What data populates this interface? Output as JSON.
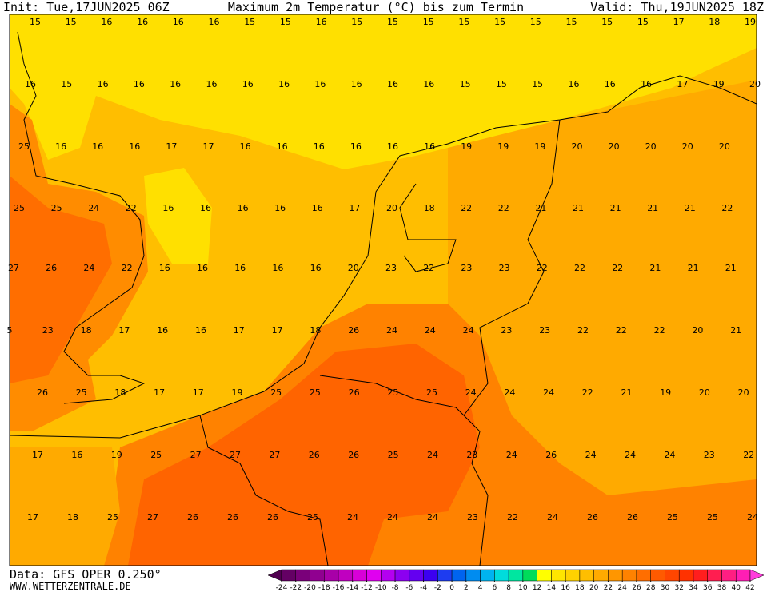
{
  "header": {
    "init": "Init: Tue,17JUN2025 06Z",
    "title": "Maximum 2m Temperatur (°C) bis zum Termin",
    "valid": "Valid: Thu,19JUN2025 18Z"
  },
  "grid": {
    "rows": [
      [
        15,
        15,
        16,
        16,
        16,
        16,
        15,
        15,
        16,
        15,
        15,
        15,
        15,
        15,
        15,
        15,
        15,
        15,
        17,
        18,
        19
      ],
      [
        16,
        15,
        16,
        16,
        16,
        16,
        16,
        16,
        16,
        16,
        16,
        16,
        15,
        15,
        15,
        16,
        16,
        16,
        17,
        19,
        20
      ],
      [
        25,
        16,
        16,
        16,
        17,
        17,
        16,
        16,
        16,
        16,
        16,
        16,
        19,
        19,
        19,
        20,
        20,
        20,
        20,
        20
      ],
      [
        25,
        25,
        24,
        22,
        16,
        16,
        16,
        16,
        16,
        17,
        20,
        18,
        22,
        22,
        21,
        21,
        21,
        21,
        21,
        22
      ],
      [
        27,
        26,
        24,
        22,
        16,
        16,
        16,
        16,
        16,
        20,
        23,
        22,
        23,
        23,
        22,
        22,
        22,
        21,
        21,
        21
      ],
      [
        5,
        23,
        18,
        17,
        16,
        16,
        17,
        17,
        18,
        26,
        24,
        24,
        24,
        23,
        23,
        22,
        22,
        22,
        20,
        21
      ],
      [
        26,
        25,
        18,
        17,
        17,
        19,
        25,
        25,
        26,
        25,
        25,
        24,
        24,
        24,
        22,
        21,
        19,
        20,
        20
      ],
      [
        17,
        16,
        19,
        25,
        27,
        27,
        27,
        26,
        26,
        25,
        24,
        23,
        24,
        26,
        24,
        24,
        24,
        23,
        22
      ],
      [
        17,
        18,
        25,
        27,
        26,
        26,
        26,
        25,
        24,
        24,
        24,
        23,
        22,
        24,
        26,
        26,
        25,
        25,
        24
      ]
    ]
  },
  "colorbar": {
    "ticks": [
      -24,
      -22,
      -20,
      -18,
      -16,
      -14,
      -12,
      -10,
      -8,
      -6,
      -4,
      -2,
      0,
      2,
      4,
      6,
      8,
      10,
      12,
      14,
      16,
      18,
      20,
      22,
      24,
      26,
      28,
      30,
      32,
      34,
      36,
      38,
      40,
      42
    ],
    "colors": [
      "#500050",
      "#640064",
      "#7a007a",
      "#900090",
      "#a800a8",
      "#c000c0",
      "#d800d8",
      "#e000f0",
      "#b400f0",
      "#8c00f0",
      "#6400f0",
      "#3c00f0",
      "#1e3cf0",
      "#0064f0",
      "#008cf0",
      "#00b4f0",
      "#00dcdc",
      "#00e6a0",
      "#00dc5a",
      "#ffff00",
      "#ffe600",
      "#ffd200",
      "#ffbe00",
      "#ffaa00",
      "#ff9600",
      "#ff8200",
      "#ff6e00",
      "#ff5a00",
      "#ff4600",
      "#ff3200",
      "#ff1e1e",
      "#ff1e50",
      "#ff1e82",
      "#ff1eb4",
      "#ff3cdc"
    ]
  },
  "footer": {
    "source": "Data: GFS OPER 0.250°",
    "website": "WWW.WETTERZENTRALE.DE"
  }
}
